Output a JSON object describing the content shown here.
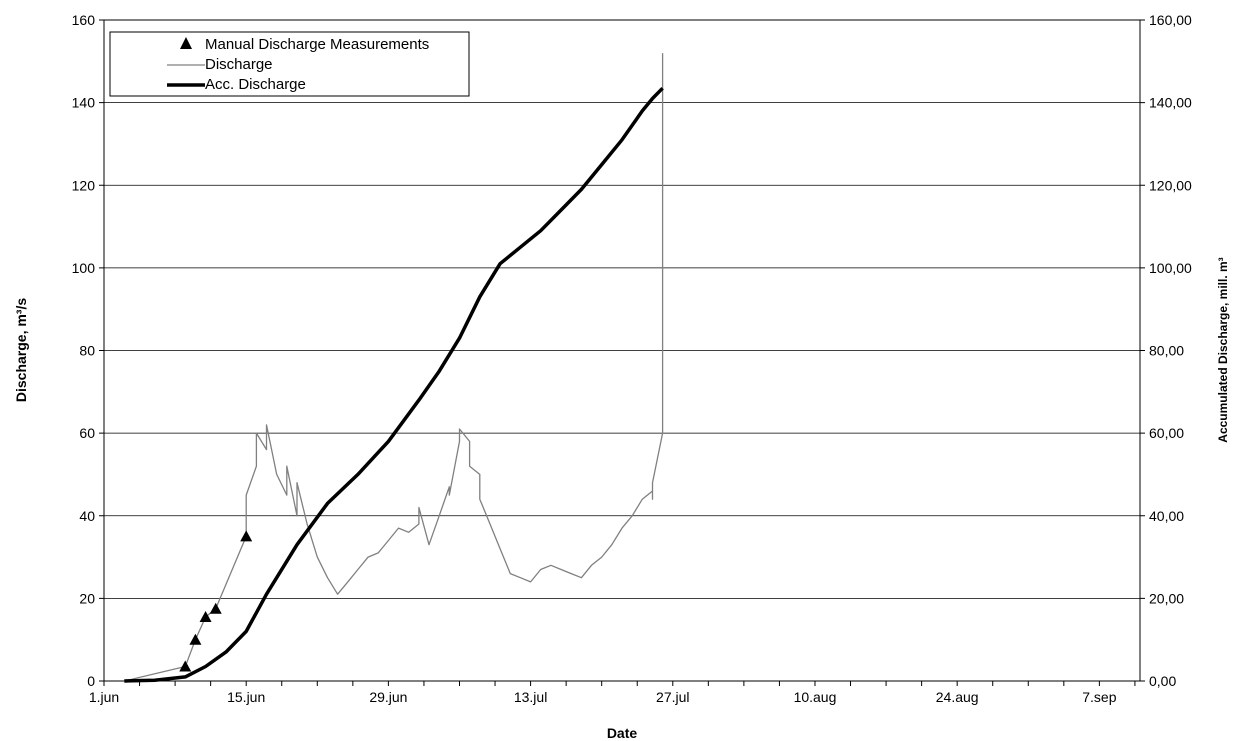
{
  "chart_data": {
    "type": "line",
    "title": "",
    "xlabel": "Date",
    "ylabel_left": "Discharge, m³/s",
    "ylabel_right": "Accumulated Discharge, mill. m³",
    "x_ticks": [
      "1.jun",
      "15.jun",
      "29.jun",
      "13.jul",
      "27.jul",
      "10.aug",
      "24.aug",
      "7.sep"
    ],
    "x_range_days": [
      0,
      102
    ],
    "ylim_left": [
      0,
      160
    ],
    "ylim_right": [
      0,
      160
    ],
    "y_ticks_left": [
      "0",
      "20",
      "40",
      "60",
      "80",
      "100",
      "120",
      "140",
      "160"
    ],
    "y_ticks_right": [
      "0,00",
      "20,00",
      "40,00",
      "60,00",
      "80,00",
      "100,00",
      "120,00",
      "140,00",
      "160,00"
    ],
    "grid": "horizontal",
    "legend_position": "top-left",
    "series": [
      {
        "name": "Manual Discharge Measurements",
        "style": "triangle-markers",
        "color": "#000000",
        "x_dates": [
          "9.jun",
          "10.jun",
          "11.jun",
          "12.jun",
          "15.jun"
        ],
        "values": [
          3.5,
          10,
          15.5,
          17.5,
          35
        ]
      },
      {
        "name": "Discharge",
        "style": "thin-line",
        "color": "#808080",
        "x_dates": [
          "3.jun",
          "9.jun",
          "10.jun",
          "11.jun",
          "12.jun",
          "15.jun",
          "15.jun",
          "16.jun",
          "16.jun",
          "17.jun",
          "17.jun",
          "18.jun",
          "19.jun",
          "19.jun",
          "20.jun",
          "20.jun",
          "21.jun",
          "22.jun",
          "23.jun",
          "24.jun",
          "25.jun",
          "26.jun",
          "27.jun",
          "28.jun",
          "29.jun",
          "30.jun",
          "1.jul",
          "2.jul",
          "2.jul",
          "3.jul",
          "4.jul",
          "5.jul",
          "5.jul",
          "6.jul",
          "6.jul",
          "7.jul",
          "7.jul",
          "8.jul",
          "8.jul",
          "9.jul",
          "10.jul",
          "11.jul",
          "12.jul",
          "13.jul",
          "14.jul",
          "15.jul",
          "16.jul",
          "17.jul",
          "18.jul",
          "19.jul",
          "20.jul",
          "21.jul",
          "22.jul",
          "23.jul",
          "24.jul",
          "25.jul",
          "25.jul",
          "25.jul",
          "26.jul",
          "26.jul"
        ],
        "values": [
          0,
          3.5,
          10,
          15.5,
          17.5,
          35,
          45,
          52,
          60,
          56,
          62,
          50,
          45,
          52,
          40,
          48,
          38,
          30,
          25,
          21,
          24,
          27,
          30,
          31,
          34,
          37,
          36,
          38,
          42,
          33,
          40,
          47,
          45,
          58,
          61,
          58,
          52,
          50,
          44,
          38,
          32,
          26,
          25,
          24,
          27,
          28,
          27,
          26,
          25,
          28,
          30,
          33,
          37,
          40,
          44,
          46,
          44,
          48,
          60,
          152
        ]
      },
      {
        "name": "Acc. Discharge",
        "style": "thick-line",
        "color": "#000000",
        "axis": "right",
        "x_dates": [
          "3.jun",
          "6.jun",
          "9.jun",
          "11.jun",
          "13.jun",
          "15.jun",
          "17.jun",
          "20.jun",
          "23.jun",
          "26.jun",
          "29.jun",
          "2.jul",
          "4.jul",
          "6.jul",
          "8.jul",
          "10.jul",
          "12.jul",
          "14.jul",
          "16.jul",
          "18.jul",
          "20.jul",
          "22.jul",
          "24.jul",
          "25.jul",
          "26.jul"
        ],
        "values": [
          0,
          0.2,
          1,
          3.5,
          7,
          12,
          21,
          33,
          43,
          50,
          58,
          68,
          75,
          83,
          93,
          101,
          105,
          109,
          114,
          119,
          125,
          131,
          138,
          141,
          143.5
        ]
      }
    ]
  }
}
